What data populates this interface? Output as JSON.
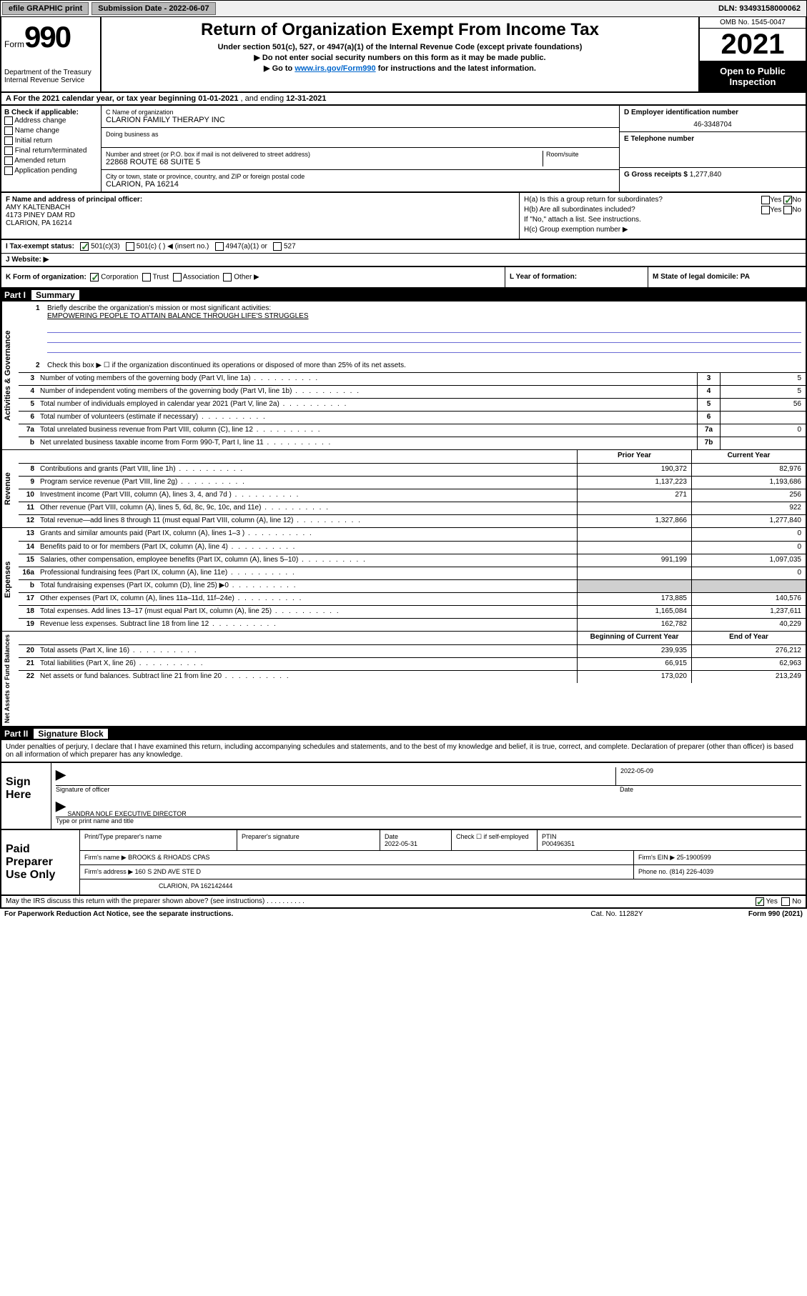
{
  "topbar": {
    "efile": "efile GRAPHIC print",
    "submission_label": "Submission Date - 2022-06-07",
    "dln": "DLN: 93493158000062"
  },
  "header": {
    "form_word": "Form",
    "form_num": "990",
    "dept": "Department of the Treasury\nInternal Revenue Service",
    "title": "Return of Organization Exempt From Income Tax",
    "sub1": "Under section 501(c), 527, or 4947(a)(1) of the Internal Revenue Code (except private foundations)",
    "sub2": "▶ Do not enter social security numbers on this form as it may be made public.",
    "sub3_pre": "▶ Go to ",
    "sub3_link": "www.irs.gov/Form990",
    "sub3_post": " for instructions and the latest information.",
    "omb": "OMB No. 1545-0047",
    "year": "2021",
    "otp": "Open to Public Inspection"
  },
  "row_a": {
    "text_pre": "A For the 2021 calendar year, or tax year beginning ",
    "begin": "01-01-2021",
    "mid": " , and ending ",
    "end": "12-31-2021"
  },
  "col_b": {
    "label": "B Check if applicable:",
    "items": [
      "Address change",
      "Name change",
      "Initial return",
      "Final return/terminated",
      "Amended return",
      "Application pending"
    ]
  },
  "col_c": {
    "name_label": "C Name of organization",
    "name": "CLARION FAMILY THERAPY INC",
    "dba_label": "Doing business as",
    "dba": "",
    "street_label": "Number and street (or P.O. box if mail is not delivered to street address)",
    "room_label": "Room/suite",
    "street": "22868 ROUTE 68 SUITE 5",
    "city_label": "City or town, state or province, country, and ZIP or foreign postal code",
    "city": "CLARION, PA  16214"
  },
  "col_d": {
    "ein_label": "D Employer identification number",
    "ein": "46-3348704",
    "phone_label": "E Telephone number",
    "phone": "",
    "gross_label": "G Gross receipts $",
    "gross": "1,277,840"
  },
  "fgh": {
    "f_label": "F Name and address of principal officer:",
    "f_name": "AMY KALTENBACH",
    "f_addr1": "4173 PINEY DAM RD",
    "f_addr2": "CLARION, PA  16214",
    "ha": "H(a)  Is this a group return for subordinates?",
    "hb": "H(b)  Are all subordinates included?",
    "hb_note": "If \"No,\" attach a list. See instructions.",
    "hc": "H(c)  Group exemption number ▶",
    "yes": "Yes",
    "no": "No"
  },
  "row_i": "I    Tax-exempt status:",
  "row_i_opts": [
    "501(c)(3)",
    "501(c) (  ) ◀ (insert no.)",
    "4947(a)(1) or",
    "527"
  ],
  "row_j": "J    Website: ▶",
  "row_k": {
    "k": "K Form of organization:",
    "opts": [
      "Corporation",
      "Trust",
      "Association",
      "Other ▶"
    ],
    "l": "L Year of formation:",
    "m": "M State of legal domicile: PA"
  },
  "part1": {
    "hdr_num": "Part I",
    "hdr_title": "Summary",
    "line1": "Briefly describe the organization's mission or most significant activities:",
    "mission": "EMPOWERING PEOPLE TO ATTAIN BALANCE THROUGH LIFE'S STRUGGLES",
    "line2": "Check this box ▶ ☐  if the organization discontinued its operations or disposed of more than 25% of its net assets."
  },
  "side_labels": {
    "gov": "Activities & Governance",
    "rev": "Revenue",
    "exp": "Expenses",
    "net": "Net Assets or Fund Balances"
  },
  "gov_rows": [
    {
      "n": "3",
      "t": "Number of voting members of the governing body (Part VI, line 1a)",
      "bn": "3",
      "v": "5"
    },
    {
      "n": "4",
      "t": "Number of independent voting members of the governing body (Part VI, line 1b)",
      "bn": "4",
      "v": "5"
    },
    {
      "n": "5",
      "t": "Total number of individuals employed in calendar year 2021 (Part V, line 2a)",
      "bn": "5",
      "v": "56"
    },
    {
      "n": "6",
      "t": "Total number of volunteers (estimate if necessary)",
      "bn": "6",
      "v": ""
    },
    {
      "n": "7a",
      "t": "Total unrelated business revenue from Part VIII, column (C), line 12",
      "bn": "7a",
      "v": "0"
    },
    {
      "n": "b",
      "t": "Net unrelated business taxable income from Form 990-T, Part I, line 11",
      "bn": "7b",
      "v": ""
    }
  ],
  "col_hdr": {
    "py": "Prior Year",
    "cy": "Current Year",
    "boy": "Beginning of Current Year",
    "eoy": "End of Year"
  },
  "rev_rows": [
    {
      "n": "8",
      "t": "Contributions and grants (Part VIII, line 1h)",
      "py": "190,372",
      "cy": "82,976"
    },
    {
      "n": "9",
      "t": "Program service revenue (Part VIII, line 2g)",
      "py": "1,137,223",
      "cy": "1,193,686"
    },
    {
      "n": "10",
      "t": "Investment income (Part VIII, column (A), lines 3, 4, and 7d )",
      "py": "271",
      "cy": "256"
    },
    {
      "n": "11",
      "t": "Other revenue (Part VIII, column (A), lines 5, 6d, 8c, 9c, 10c, and 11e)",
      "py": "",
      "cy": "922"
    },
    {
      "n": "12",
      "t": "Total revenue—add lines 8 through 11 (must equal Part VIII, column (A), line 12)",
      "py": "1,327,866",
      "cy": "1,277,840"
    }
  ],
  "exp_rows": [
    {
      "n": "13",
      "t": "Grants and similar amounts paid (Part IX, column (A), lines 1–3 )",
      "py": "",
      "cy": "0"
    },
    {
      "n": "14",
      "t": "Benefits paid to or for members (Part IX, column (A), line 4)",
      "py": "",
      "cy": "0"
    },
    {
      "n": "15",
      "t": "Salaries, other compensation, employee benefits (Part IX, column (A), lines 5–10)",
      "py": "991,199",
      "cy": "1,097,035"
    },
    {
      "n": "16a",
      "t": "Professional fundraising fees (Part IX, column (A), line 11e)",
      "py": "",
      "cy": "0"
    },
    {
      "n": "b",
      "t": "Total fundraising expenses (Part IX, column (D), line 25) ▶0",
      "py": "",
      "cy": "",
      "shaded": true
    },
    {
      "n": "17",
      "t": "Other expenses (Part IX, column (A), lines 11a–11d, 11f–24e)",
      "py": "173,885",
      "cy": "140,576"
    },
    {
      "n": "18",
      "t": "Total expenses. Add lines 13–17 (must equal Part IX, column (A), line 25)",
      "py": "1,165,084",
      "cy": "1,237,611"
    },
    {
      "n": "19",
      "t": "Revenue less expenses. Subtract line 18 from line 12",
      "py": "162,782",
      "cy": "40,229"
    }
  ],
  "net_rows": [
    {
      "n": "20",
      "t": "Total assets (Part X, line 16)",
      "py": "239,935",
      "cy": "276,212"
    },
    {
      "n": "21",
      "t": "Total liabilities (Part X, line 26)",
      "py": "66,915",
      "cy": "62,963"
    },
    {
      "n": "22",
      "t": "Net assets or fund balances. Subtract line 21 from line 20",
      "py": "173,020",
      "cy": "213,249"
    }
  ],
  "part2": {
    "hdr_num": "Part II",
    "hdr_title": "Signature Block",
    "decl": "Under penalties of perjury, I declare that I have examined this return, including accompanying schedules and statements, and to the best of my knowledge and belief, it is true, correct, and complete. Declaration of preparer (other than officer) is based on all information of which preparer has any knowledge."
  },
  "sign": {
    "label": "Sign Here",
    "sig_label": "Signature of officer",
    "date_label": "Date",
    "date": "2022-05-09",
    "name": "SANDRA NOLF  EXECUTIVE DIRECTOR",
    "name_label": "Type or print name and title"
  },
  "paid": {
    "label": "Paid Preparer Use Only",
    "col1": "Print/Type preparer's name",
    "col2": "Preparer's signature",
    "col3": "Date",
    "date": "2022-05-31",
    "col4_pre": "Check ☐ if self-employed",
    "col5": "PTIN",
    "ptin": "P00496351",
    "firm_label": "Firm's name    ▶",
    "firm": "BROOKS & RHOADS CPAS",
    "ein_label": "Firm's EIN ▶",
    "ein": "25-1900599",
    "addr_label": "Firm's address ▶",
    "addr1": "160 S 2ND AVE STE D",
    "addr2": "CLARION, PA  162142444",
    "phone_label": "Phone no.",
    "phone": "(814) 226-4039"
  },
  "footer": {
    "may": "May the IRS discuss this return with the preparer shown above? (see instructions)",
    "yes": "Yes",
    "no": "No",
    "pra": "For Paperwork Reduction Act Notice, see the separate instructions.",
    "cat": "Cat. No. 11282Y",
    "formno": "Form 990 (2021)"
  }
}
